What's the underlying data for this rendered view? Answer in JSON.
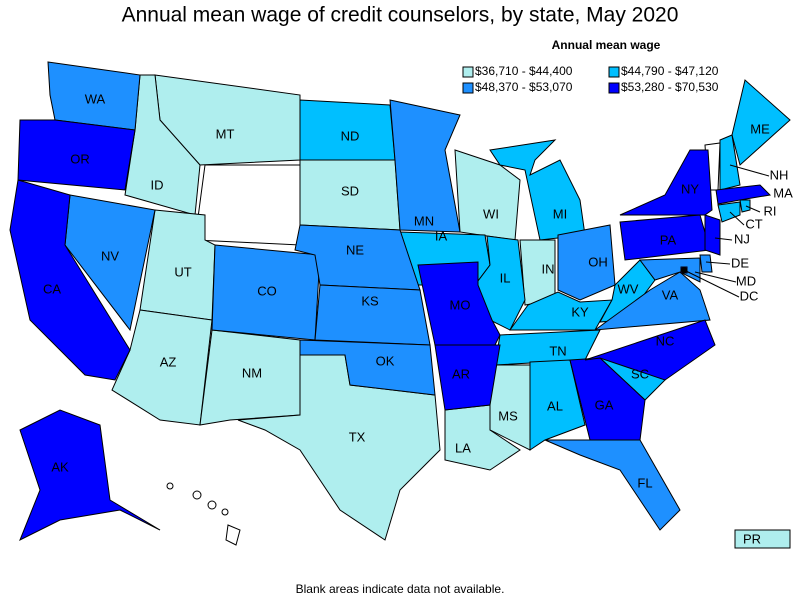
{
  "title": "Annual mean wage of credit counselors, by state, May 2020",
  "legend": {
    "title": "Annual mean wage",
    "items": [
      {
        "label": "$36,710 - $44,400",
        "color": "#afeeee",
        "states": [
          "MT",
          "ID",
          "UT",
          "AZ",
          "NM",
          "SD",
          "TX",
          "LA",
          "MS",
          "WI",
          "IN",
          "PR"
        ]
      },
      {
        "label": "$44,790 - $47,120",
        "color": "#00bfff",
        "states": [
          "ND",
          "IA",
          "IL",
          "MI",
          "KY",
          "WV",
          "TN",
          "AL",
          "SC",
          "ME",
          "NH",
          "CT",
          "RI"
        ]
      },
      {
        "label": "$48,370 - $53,070",
        "color": "#1e90ff",
        "states": [
          "WA",
          "NV",
          "CO",
          "NE",
          "KS",
          "OK",
          "MN",
          "OH",
          "VA",
          "FL",
          "MD",
          "DE"
        ]
      },
      {
        "label": "$53,280 - $70,530",
        "color": "#0000ff",
        "states": [
          "OR",
          "CA",
          "AK",
          "MO",
          "AR",
          "GA",
          "NC",
          "NY",
          "PA",
          "NJ",
          "MA",
          "DC"
        ]
      }
    ]
  },
  "footnote": "Blank areas indicate data not available."
}
